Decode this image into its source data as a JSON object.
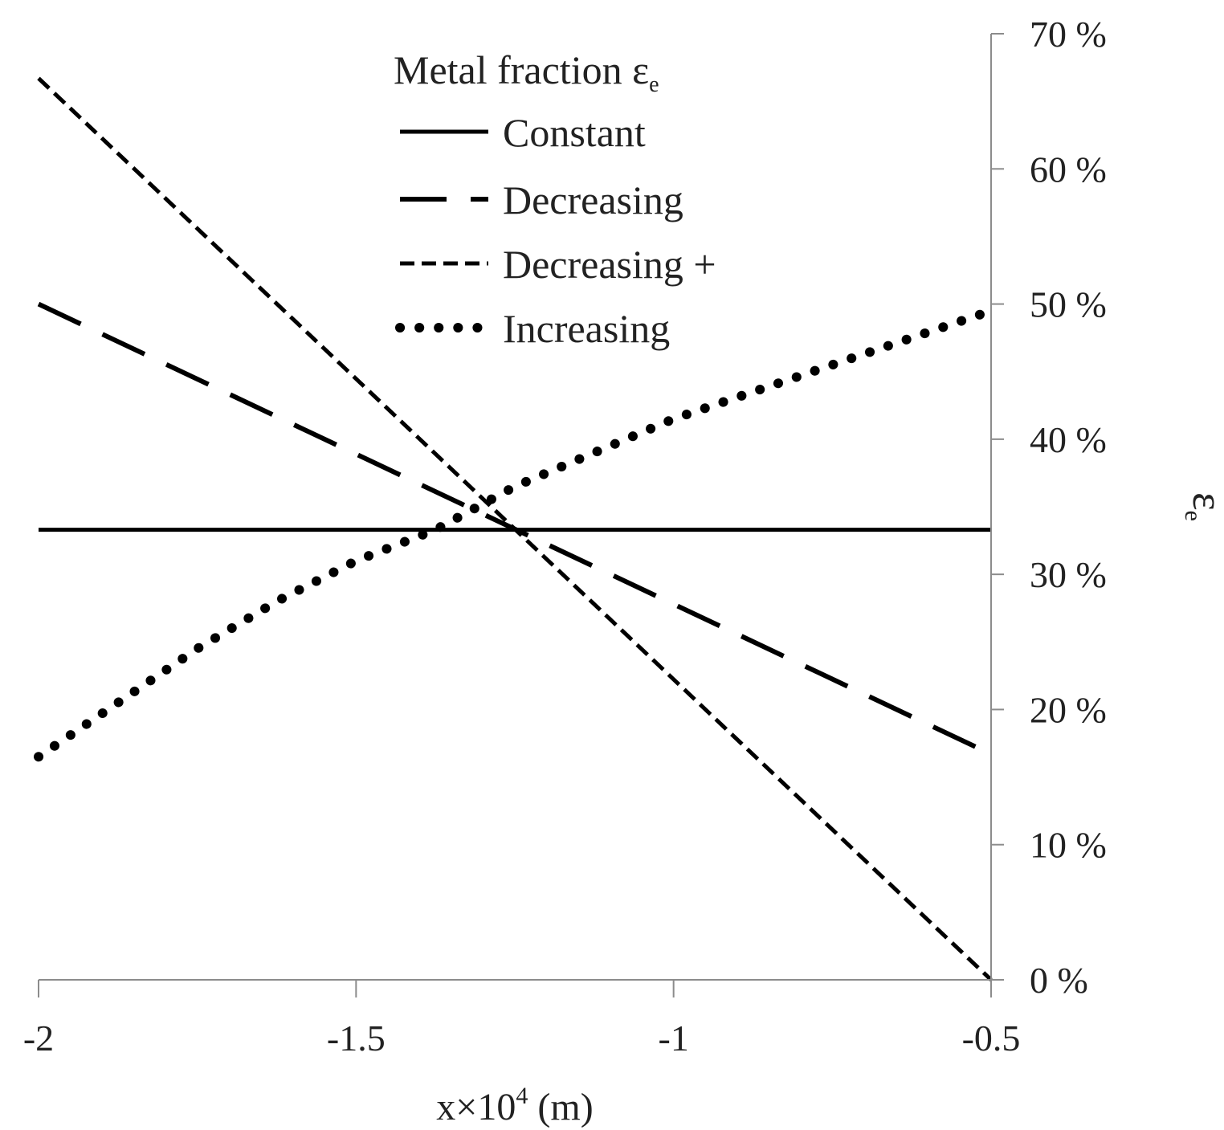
{
  "chart_data": {
    "type": "line",
    "title": "",
    "xlabel": {
      "pre": "x×10",
      "sup": "4",
      "post": " (m)"
    },
    "ylabel": {
      "main": "ε",
      "sub": "e"
    },
    "xlim": [
      -2,
      -0.5
    ],
    "ylim": [
      0,
      70
    ],
    "x_ticks": [
      -2,
      -1.5,
      -1,
      -0.5
    ],
    "x_tick_labels": [
      "-2",
      "-1.5",
      "-1",
      "-0.5"
    ],
    "y_ticks": [
      0,
      10,
      20,
      30,
      40,
      50,
      60,
      70
    ],
    "y_tick_labels": [
      "0 %",
      "10 %",
      "20 %",
      "30 %",
      "40 %",
      "50 %",
      "60 %",
      "70 %"
    ],
    "y_axis_side": "right",
    "grid": false,
    "legend_position": "top-left",
    "legend_title": {
      "main": "Metal fraction ε",
      "sub": "e"
    },
    "series": [
      {
        "name": "Constant",
        "style": "solid",
        "color": "#000000",
        "points": [
          [
            -2,
            33.3
          ],
          [
            -0.5,
            33.3
          ]
        ]
      },
      {
        "name": "Decreasing",
        "style": "long-dash",
        "color": "#000000",
        "points": [
          [
            -2,
            50
          ],
          [
            -0.5,
            16.7
          ]
        ]
      },
      {
        "name": "Decreasing +",
        "style": "short-dash",
        "color": "#000000",
        "points": [
          [
            -2,
            66.7
          ],
          [
            -0.5,
            0
          ]
        ]
      },
      {
        "name": "Increasing",
        "style": "dotted",
        "color": "#000000",
        "points": [
          [
            -2,
            16.5
          ],
          [
            -1.875,
            20.5
          ],
          [
            -1.75,
            24.5
          ],
          [
            -1.625,
            28.0
          ],
          [
            -1.5,
            31.0
          ],
          [
            -1.375,
            33.3
          ],
          [
            -1.25,
            36.5
          ],
          [
            -1.125,
            39.0
          ],
          [
            -1.0,
            41.5
          ],
          [
            -0.875,
            43.5
          ],
          [
            -0.75,
            45.5
          ],
          [
            -0.625,
            47.5
          ],
          [
            -0.5,
            49.5
          ]
        ]
      }
    ]
  }
}
